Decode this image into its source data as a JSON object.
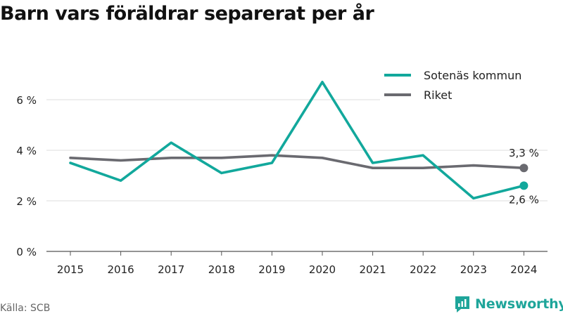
{
  "title": "Barn vars föräldrar separerat per år",
  "source": "Källa: SCB",
  "brand": {
    "name": "Newsworthy",
    "color": "#1ea59a"
  },
  "colors": {
    "series_sotenas": "#12a89c",
    "series_riket": "#6a6a70",
    "grid": "#dcdcdc",
    "axis": "#555555"
  },
  "chart_data": {
    "type": "line",
    "x": [
      "2015",
      "2016",
      "2017",
      "2018",
      "2019",
      "2020",
      "2021",
      "2022",
      "2023",
      "2024"
    ],
    "ylim": [
      0,
      7
    ],
    "y_ticks": [
      {
        "value": 0,
        "label": "0 %"
      },
      {
        "value": 2,
        "label": "2 %"
      },
      {
        "value": 4,
        "label": "4 %"
      },
      {
        "value": 6,
        "label": "6 %"
      }
    ],
    "grid": true,
    "legend_position": "top-right",
    "series": [
      {
        "name": "Sotenäs kommun",
        "color": "#12a89c",
        "values": [
          3.5,
          2.8,
          4.3,
          3.1,
          3.5,
          6.7,
          3.5,
          3.8,
          2.1,
          2.6
        ],
        "end_label": "2,6 %"
      },
      {
        "name": "Riket",
        "color": "#6a6a70",
        "values": [
          3.7,
          3.6,
          3.7,
          3.7,
          3.8,
          3.7,
          3.3,
          3.3,
          3.4,
          3.3
        ],
        "end_label": "3,3 %"
      }
    ]
  }
}
